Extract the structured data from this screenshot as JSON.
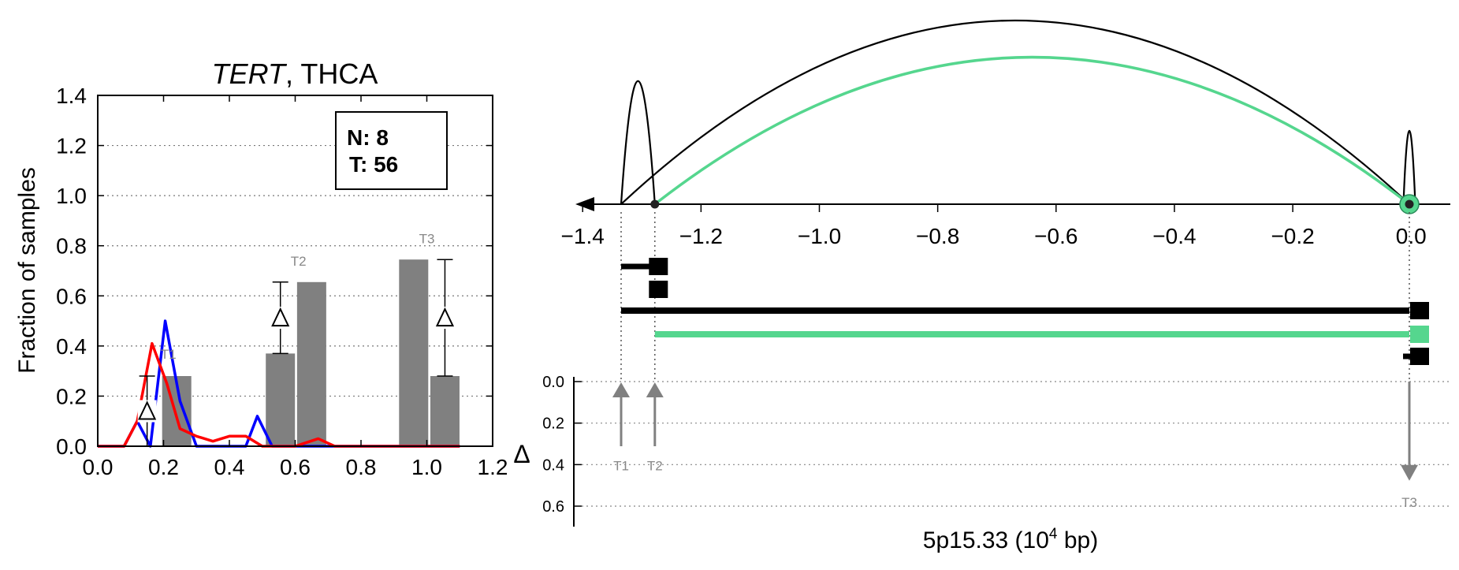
{
  "left_panel": {
    "title_italic": "TERT",
    "title_rest": ", THCA",
    "ylabel": "Fraction of samples",
    "legend": {
      "n_text": "N: 8",
      "t_text": "T: 56"
    }
  },
  "right_panel": {
    "xlabel_base": "5p15.33 (10",
    "xlabel_exp": "4",
    "xlabel_tail": " bp)",
    "delta_label": "Δ"
  },
  "colors": {
    "normal": "#0000ff",
    "tumor": "#ff0000",
    "bar": "#808080",
    "highlight": "#55d68e",
    "axis": "#000000",
    "grid": "#999999"
  },
  "chart_data": [
    {
      "type": "bar",
      "title": "TERT, THCA",
      "xlabel": "",
      "ylabel": "Fraction of samples",
      "xlim": [
        0.0,
        1.2
      ],
      "ylim": [
        0.0,
        1.4
      ],
      "x_ticks": [
        0.0,
        0.2,
        0.4,
        0.6,
        0.8,
        1.0,
        1.2
      ],
      "x_tick_labels": [
        "0.0",
        "0.2",
        "0.4",
        "0.6",
        "0.8",
        "1.0",
        "1.2"
      ],
      "y_ticks": [
        0.0,
        0.2,
        0.4,
        0.6,
        0.8,
        1.0,
        1.2,
        1.4
      ],
      "y_tick_labels": [
        "0.0",
        "0.2",
        "0.4",
        "0.6",
        "0.8",
        "1.0",
        "1.2",
        "1.4"
      ],
      "grid": true,
      "legend": {
        "N": 8,
        "T": 56,
        "placement": "top-right"
      },
      "bars": [
        {
          "label": "T1",
          "x": 0.24,
          "value": 0.28
        },
        {
          "label": "T2",
          "x": 0.555,
          "value": 0.37
        },
        {
          "label": "T2",
          "x": 0.65,
          "value": 0.655
        },
        {
          "label": "T3",
          "x": 0.96,
          "value": 0.745
        },
        {
          "label": "T3",
          "x": 1.055,
          "value": 0.28
        }
      ],
      "group_labels": [
        {
          "text": "T1",
          "x": 0.215,
          "y": 0.35
        },
        {
          "text": "T2",
          "x": 0.61,
          "y": 0.72
        },
        {
          "text": "T3",
          "x": 1.0,
          "y": 0.81
        }
      ],
      "deltas": [
        {
          "x": 0.15,
          "y_low": 0.0,
          "y_high": 0.28
        },
        {
          "x": 0.555,
          "y_low": 0.37,
          "y_high": 0.655
        },
        {
          "x": 1.055,
          "y_low": 0.28,
          "y_high": 0.745
        }
      ],
      "series": [
        {
          "name": "",
          "color": "#0000ff",
          "x": [
            0.0,
            0.04,
            0.08,
            0.12,
            0.16,
            0.205,
            0.25,
            0.3,
            0.35,
            0.4,
            0.45,
            0.485,
            0.53,
            0.6,
            0.7,
            0.8,
            0.9,
            1.0,
            1.1
          ],
          "y": [
            0.0,
            0.0,
            0.0,
            0.1,
            0.0,
            0.5,
            0.18,
            0.0,
            0.0,
            0.0,
            0.0,
            0.12,
            0.0,
            0.0,
            0.0,
            0.0,
            0.0,
            0.0,
            0.0
          ]
        },
        {
          "name": "",
          "color": "#ff0000",
          "x": [
            0.0,
            0.04,
            0.08,
            0.12,
            0.165,
            0.21,
            0.25,
            0.3,
            0.35,
            0.4,
            0.45,
            0.5,
            0.55,
            0.6,
            0.67,
            0.72,
            0.8,
            0.9,
            1.0,
            1.1
          ],
          "y": [
            0.0,
            0.0,
            0.0,
            0.1,
            0.41,
            0.25,
            0.07,
            0.04,
            0.02,
            0.04,
            0.04,
            0.0,
            0.0,
            0.0,
            0.03,
            0.0,
            0.0,
            0.0,
            0.0,
            0.0
          ]
        }
      ]
    },
    {
      "type": "line",
      "title": "",
      "xlabel": "5p15.33 (10^4 bp)",
      "ylabel": "Δ",
      "xlim": [
        -1.47,
        0.09
      ],
      "x_ticks": [
        -1.4,
        -1.2,
        -1.0,
        -0.8,
        -0.6,
        -0.4,
        -0.2,
        0.0
      ],
      "x_tick_labels": [
        "−1.4",
        "−1.2",
        "−1.0",
        "−0.8",
        "−0.6",
        "−0.4",
        "−0.2",
        "0.0"
      ],
      "delta_axis": {
        "range": [
          0.0,
          0.6
        ],
        "ticks": [
          0.0,
          0.2,
          0.4,
          0.6
        ],
        "tick_labels": [
          "0.0",
          "0.2",
          "0.4",
          "0.6"
        ],
        "inverted": true,
        "grid": true
      },
      "direction_arrow": "left",
      "sites": [
        {
          "label": "T1",
          "x": -1.335,
          "delta": 0.3,
          "direction": "up"
        },
        {
          "label": "T2",
          "x": -1.278,
          "delta": 0.3,
          "direction": "up"
        },
        {
          "label": "T3",
          "x": -0.003,
          "delta": 0.47,
          "direction": "down"
        }
      ],
      "arcs": [
        {
          "from": -1.335,
          "to": -1.278,
          "height": 0.67,
          "color": "#000000",
          "width": 2.2
        },
        {
          "from": -1.335,
          "to": -0.003,
          "height": 1.0,
          "color": "#000000",
          "width": 2.2
        },
        {
          "from": -1.278,
          "to": -0.003,
          "height": 0.8,
          "color": "#55d68e",
          "width": 3.5
        },
        {
          "from": -0.013,
          "to": 0.007,
          "height": 0.4,
          "color": "#000000",
          "width": 2.2
        }
      ],
      "markers": [
        {
          "x": -1.278,
          "kind": "dot"
        },
        {
          "x": -0.003,
          "kind": "dot-highlight"
        }
      ],
      "transcripts": [
        {
          "start": -1.335,
          "end": -1.278,
          "color": "#000000",
          "exons_at": [
            -1.272,
            -1.272
          ]
        },
        {
          "start": -1.335,
          "end": -0.003,
          "color": "#000000",
          "exons_at": [
            -0.003
          ]
        },
        {
          "start": -1.278,
          "end": -0.003,
          "color": "#55d68e",
          "exons_at": [
            -0.003
          ]
        },
        {
          "start": -0.003,
          "end": -0.003,
          "color": "#000000",
          "exons_at": [
            -0.003
          ]
        }
      ]
    }
  ]
}
